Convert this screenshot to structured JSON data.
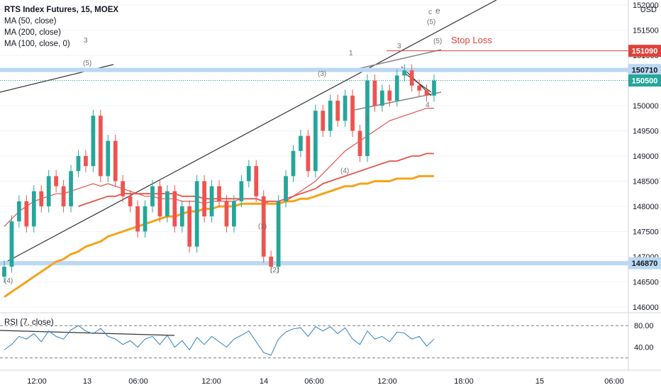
{
  "header": {
    "title": "RTS Index Futures, 15, MOEX",
    "indicators": [
      "MA (50, close)",
      "MA (200, close)",
      "MA (100, close, 0)"
    ]
  },
  "price_axis": {
    "currency": "USD"
  },
  "rsi_panel": {
    "label": "RSI (7, close)"
  },
  "annotations": {
    "stop_loss": "Stop Loss",
    "waves": [
      "(5)",
      "3",
      "(3)",
      "1",
      "3",
      "(5)",
      "2",
      "4",
      "(4)",
      "(1)",
      "(2)",
      "(4)",
      "e",
      "c",
      "(5)"
    ]
  },
  "colors": {
    "ma50": "#e5534b",
    "ma200": "#f7a21b",
    "ma100": "#e5534b",
    "up_candle": "#26a69a",
    "down_candle": "#ef5350",
    "horizontal_levels": "#bcd8f2",
    "rsi_line": "#2f7fc1",
    "stop_loss": "#e0403a",
    "current_price_tag": "#26a69a"
  },
  "chart_data": {
    "type": "candlestick",
    "title": "RTS Index Futures, 15, MOEX",
    "x_tick_labels": [
      "12:00",
      "13",
      "06:00",
      "12:00",
      "14",
      "06:00",
      "12:00",
      "18:00",
      "15",
      "06:00"
    ],
    "y_tick_labels": [
      152000,
      151500,
      151000,
      150500,
      150000,
      149500,
      149000,
      148500,
      148000,
      147500,
      147000,
      146500,
      146000
    ],
    "ylim": [
      145900,
      152100
    ],
    "price_tags": [
      {
        "label": "151090",
        "value": 151090,
        "kind": "stop_loss"
      },
      {
        "label": "150710",
        "value": 150710,
        "kind": "level"
      },
      {
        "label": "150500",
        "value": 150500,
        "kind": "last_price"
      },
      {
        "label": "146870",
        "value": 146870,
        "kind": "level"
      }
    ],
    "horizontal_levels": [
      150710,
      146870
    ],
    "stop_loss_level": 151090,
    "close_series": [
      146800,
      147700,
      148100,
      147600,
      148300,
      148000,
      148600,
      148400,
      148000,
      148700,
      149000,
      148800,
      149800,
      148600,
      149300,
      148500,
      148200,
      148000,
      147500,
      148000,
      148400,
      147800,
      148300,
      147600,
      148000,
      147200,
      148500,
      147800,
      148400,
      148100,
      147600,
      148100,
      148500,
      148800,
      148200,
      147000,
      146800,
      148100,
      148600,
      149100,
      149400,
      148700,
      149900,
      149500,
      150100,
      149700,
      150200,
      149500,
      149000,
      150500,
      150000,
      150300,
      150100,
      150600,
      150700,
      150400,
      150300,
      150200,
      150500
    ],
    "series": [
      {
        "name": "MA (50, close)",
        "values": [
          147600,
          147750,
          147900,
          148000,
          148100,
          148150,
          148200,
          148250,
          148250,
          148300,
          148350,
          148400,
          148450,
          148400,
          148450,
          148400,
          148350,
          148300,
          148250,
          148200,
          148200,
          148150,
          148150,
          148150,
          148100,
          148100,
          148100,
          148050,
          148100,
          148100,
          148100,
          148100,
          148150,
          148150,
          148150,
          148100,
          148050,
          148050,
          148100,
          148200,
          148300,
          148400,
          148500,
          148650,
          148800,
          148950,
          149100,
          149200,
          149300,
          149400,
          149500,
          149600,
          149700,
          149750,
          149800,
          149850,
          149900,
          149950,
          149950
        ]
      },
      {
        "name": "MA (100, close, 0)",
        "values": [
          null,
          null,
          null,
          null,
          null,
          null,
          null,
          null,
          null,
          null,
          148000,
          148050,
          148100,
          148150,
          148200,
          148200,
          148250,
          148250,
          148250,
          148250,
          148250,
          148250,
          148250,
          148250,
          148200,
          148200,
          148200,
          148150,
          148150,
          148150,
          148150,
          148150,
          148150,
          148150,
          148150,
          148100,
          148100,
          148100,
          148150,
          148200,
          148250,
          148300,
          148350,
          148450,
          148500,
          148550,
          148600,
          148650,
          148700,
          148750,
          148800,
          148850,
          148900,
          148900,
          148950,
          149000,
          149000,
          149050,
          149050
        ]
      },
      {
        "name": "MA (200, close)",
        "values": [
          146200,
          146300,
          146400,
          146500,
          146600,
          146700,
          146800,
          146900,
          146950,
          147050,
          147100,
          147200,
          147250,
          147300,
          147400,
          147450,
          147500,
          147550,
          147600,
          147650,
          147700,
          147750,
          147800,
          147800,
          147850,
          147900,
          147900,
          147950,
          147950,
          148000,
          148000,
          148000,
          148050,
          148050,
          148050,
          148050,
          148050,
          148050,
          148100,
          148100,
          148150,
          148150,
          148200,
          148250,
          148300,
          148350,
          148400,
          148400,
          148450,
          148450,
          148500,
          148500,
          148500,
          148550,
          148550,
          148550,
          148600,
          148600,
          148600
        ]
      }
    ],
    "rsi": {
      "name": "RSI (7, close)",
      "y_tick_labels": [
        80,
        40
      ],
      "upper_band": 80,
      "lower_band": 20,
      "values": [
        35,
        45,
        60,
        55,
        65,
        50,
        70,
        60,
        55,
        72,
        80,
        70,
        65,
        75,
        60,
        55,
        45,
        52,
        40,
        55,
        60,
        45,
        62,
        40,
        52,
        35,
        58,
        45,
        60,
        50,
        40,
        55,
        62,
        70,
        50,
        30,
        25,
        55,
        68,
        74,
        76,
        60,
        78,
        70,
        78,
        65,
        76,
        55,
        45,
        70,
        55,
        60,
        50,
        68,
        66,
        55,
        60,
        42,
        55
      ]
    }
  }
}
